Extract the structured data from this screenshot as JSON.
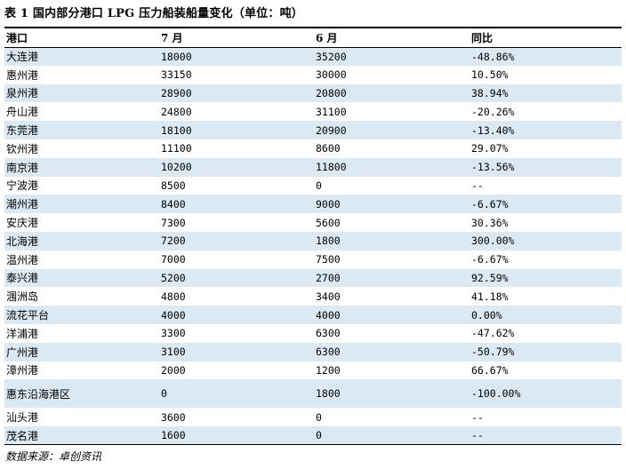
{
  "title": "表 1  国内部分港口 LPG 压力船装船量变化（单位：吨）",
  "table": {
    "headers": [
      "港口",
      "7 月",
      "6 月",
      "同比"
    ],
    "rows": [
      [
        "大连港",
        "18000",
        "35200",
        "-48.86%"
      ],
      [
        "惠州港",
        "33150",
        "30000",
        "10.50%"
      ],
      [
        "泉州港",
        "28900",
        "20800",
        "38.94%"
      ],
      [
        "舟山港",
        "24800",
        "31100",
        "-20.26%"
      ],
      [
        "东莞港",
        "18100",
        "20900",
        "-13.40%"
      ],
      [
        "钦州港",
        "11100",
        "8600",
        "29.07%"
      ],
      [
        "南京港",
        "10200",
        "11800",
        "-13.56%"
      ],
      [
        "宁波港",
        "8500",
        "0",
        "--"
      ],
      [
        "潮州港",
        "8400",
        "9000",
        "-6.67%"
      ],
      [
        "安庆港",
        "7300",
        "5600",
        "30.36%"
      ],
      [
        "北海港",
        "7200",
        "1800",
        "300.00%"
      ],
      [
        "温州港",
        "7000",
        "7500",
        "-6.67%"
      ],
      [
        "泰兴港",
        "5200",
        "2700",
        "92.59%"
      ],
      [
        "涠洲岛",
        "4800",
        "3400",
        "41.18%"
      ],
      [
        "流花平台",
        "4000",
        "4000",
        "0.00%"
      ],
      [
        "洋浦港",
        "3300",
        "6300",
        "-47.62%"
      ],
      [
        "广州港",
        "3100",
        "6300",
        "-50.79%"
      ],
      [
        "漳州港",
        "2000",
        "1200",
        "66.67%"
      ],
      [
        "惠东沿海港区",
        "0",
        "1800",
        "-100.00%"
      ],
      [
        "汕头港",
        "3600",
        "0",
        "--"
      ],
      [
        "茂名港",
        "1600",
        "0",
        "--"
      ]
    ]
  },
  "source": "数据来源：卓创资讯",
  "colors": {
    "shaded_row": "#dbe9f4",
    "rule": "#000000"
  }
}
